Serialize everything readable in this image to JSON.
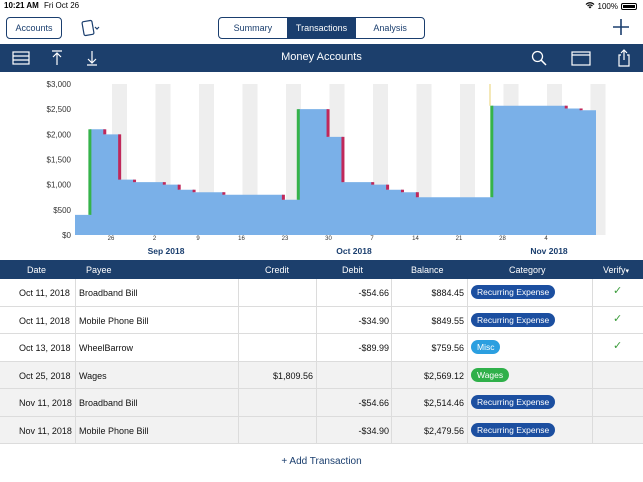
{
  "status": {
    "time": "10:21 AM",
    "date": "Fri Oct 26",
    "battery": "100%"
  },
  "nav": {
    "accounts_label": "Accounts",
    "tabs": [
      {
        "label": "Summary",
        "active": false
      },
      {
        "label": "Transactions",
        "active": true
      },
      {
        "label": "Analysis",
        "active": false
      }
    ]
  },
  "toolbar": {
    "title": "Money Accounts"
  },
  "chart_data": {
    "type": "area",
    "yticks": [
      "$3,000",
      "$2,500",
      "$2,000",
      "$1,500",
      "$1,000",
      "$500",
      "$0"
    ],
    "ylim": [
      0,
      3000
    ],
    "xtick_days": [
      "26",
      "2",
      "9",
      "16",
      "23",
      "30",
      "7",
      "14",
      "21",
      "28",
      "4"
    ],
    "months": [
      "Sep 2018",
      "Oct 2018",
      "Nov 2018"
    ],
    "series": [
      {
        "values": [
          400,
          2100,
          2000,
          1100,
          1050,
          1050,
          1000,
          900,
          850,
          850,
          800,
          800,
          800,
          800,
          700,
          2500,
          2500,
          1950,
          1050,
          1050,
          1000,
          900,
          850,
          750,
          750,
          750,
          750,
          750,
          2569,
          2569,
          2569,
          2569,
          2569,
          2514,
          2479
        ]
      }
    ],
    "colors": {
      "fill": "#7ab0e8",
      "up": "#36b34a",
      "down": "#c0285a"
    }
  },
  "table": {
    "columns": [
      "Date",
      "Payee",
      "Credit",
      "Debit",
      "Balance",
      "Category",
      "Verify"
    ],
    "verify_arrow": "▾",
    "rows": [
      {
        "date": "Oct 11, 2018",
        "payee": "Broadband Bill",
        "credit": "",
        "debit": "-$54.66",
        "balance": "$884.45",
        "category": "Recurring Expense",
        "cat_color": "#1c4fa0",
        "verified": "✓",
        "shaded": false
      },
      {
        "date": "Oct 11, 2018",
        "payee": "Mobile Phone Bill",
        "credit": "",
        "debit": "-$34.90",
        "balance": "$849.55",
        "category": "Recurring Expense",
        "cat_color": "#1c4fa0",
        "verified": "✓",
        "shaded": false
      },
      {
        "date": "Oct 13, 2018",
        "payee": "WheelBarrow",
        "credit": "",
        "debit": "-$89.99",
        "balance": "$759.56",
        "category": "Misc",
        "cat_color": "#2b9fe0",
        "verified": "✓",
        "shaded": false
      },
      {
        "date": "Oct 25, 2018",
        "payee": "Wages",
        "credit": "$1,809.56",
        "debit": "",
        "balance": "$2,569.12",
        "category": "Wages",
        "cat_color": "#2fb04a",
        "verified": "",
        "shaded": true
      },
      {
        "date": "Nov 11, 2018",
        "payee": "Broadband Bill",
        "credit": "",
        "debit": "-$54.66",
        "balance": "$2,514.46",
        "category": "Recurring Expense",
        "cat_color": "#1c4fa0",
        "verified": "",
        "shaded": true
      },
      {
        "date": "Nov 11, 2018",
        "payee": "Mobile Phone Bill",
        "credit": "",
        "debit": "-$34.90",
        "balance": "$2,479.56",
        "category": "Recurring Expense",
        "cat_color": "#1c4fa0",
        "verified": "",
        "shaded": true
      }
    ]
  },
  "add_transaction_label": "+ Add Transaction",
  "icons": {
    "wifi": "wifi-icon",
    "battery": "battery-icon",
    "list": "list-icon",
    "upload": "arrow-up-icon",
    "download": "arrow-down-icon",
    "search": "search-icon",
    "window": "window-icon",
    "share": "share-icon",
    "plus": "plus-icon",
    "document": "document-icon"
  }
}
